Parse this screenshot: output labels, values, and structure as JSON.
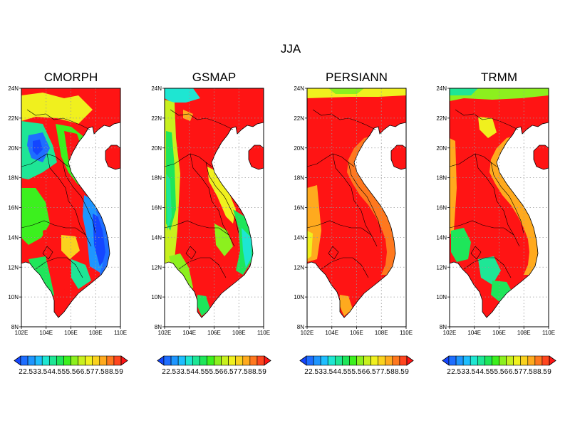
{
  "figure_title": "JJA",
  "panels": [
    {
      "title": "CMORPH"
    },
    {
      "title": "GSMAP"
    },
    {
      "title": "PERSIANN"
    },
    {
      "title": "TRMM"
    }
  ],
  "axes": {
    "lat_ticks": [
      "24N",
      "22N",
      "20N",
      "18N",
      "16N",
      "14N",
      "12N",
      "10N",
      "8N"
    ],
    "lon_ticks": [
      "102E",
      "104E",
      "106E",
      "108E",
      "110E"
    ],
    "lon_range": [
      102,
      110
    ],
    "lat_range": [
      8,
      24
    ],
    "grid": "dotted"
  },
  "colorbar": {
    "levels": [
      "2",
      "2.5",
      "3",
      "3.5",
      "4",
      "4.5",
      "5",
      "5.5",
      "6",
      "6.5",
      "7",
      "7.5",
      "8",
      "8.5",
      "9"
    ],
    "colors": [
      "#1446ff",
      "#1e6eff",
      "#1e96ff",
      "#1ebeff",
      "#1ee6d2",
      "#1ee696",
      "#1ee65a",
      "#3cf01e",
      "#8cf01e",
      "#c8f01e",
      "#f0f01e",
      "#fad21e",
      "#ffaa1e",
      "#ff781e",
      "#ff461e",
      "#ff1414"
    ]
  },
  "colors": {
    "ocean": "#ffffff",
    "background": "#ffffff"
  }
}
